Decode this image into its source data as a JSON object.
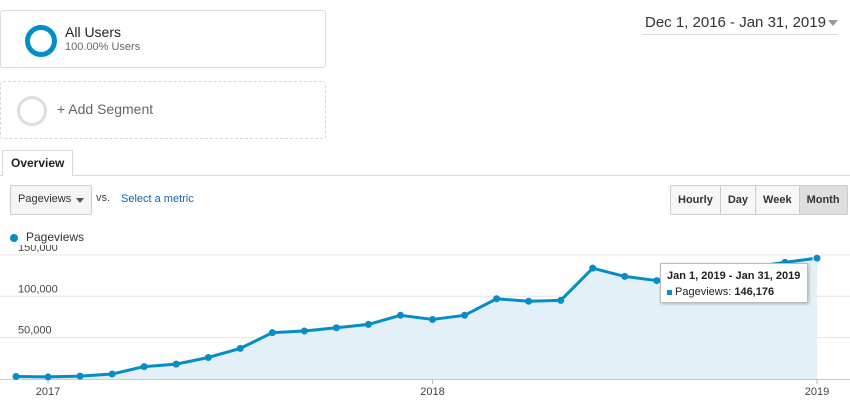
{
  "segment": {
    "name": "All Users",
    "percent": "100.00% Users"
  },
  "add_segment_label": "+ Add Segment",
  "date_range": "Dec 1, 2016 - Jan 31, 2019",
  "tabs": [
    {
      "label": "Overview"
    }
  ],
  "metric": {
    "selected": "Pageviews",
    "vs_label": "vs.",
    "select_metric_label": "Select a metric"
  },
  "granularity": [
    {
      "label": "Hourly",
      "active": false
    },
    {
      "label": "Day",
      "active": false
    },
    {
      "label": "Week",
      "active": false
    },
    {
      "label": "Month",
      "active": true
    }
  ],
  "legend": {
    "label": "Pageviews"
  },
  "colors": {
    "accent": "#058dc7",
    "fill": "#e4f0f7",
    "grid": "#e6e6e6"
  },
  "tooltip": {
    "title": "Jan 1, 2019 - Jan 31, 2019",
    "metric_label": "Pageviews:",
    "metric_value": "146,176"
  },
  "chart_data": {
    "type": "area",
    "series": [
      {
        "name": "Pageviews",
        "x": [
          "Dec 2016",
          "Jan 2017",
          "Feb 2017",
          "Mar 2017",
          "Apr 2017",
          "May 2017",
          "Jun 2017",
          "Jul 2017",
          "Aug 2017",
          "Sep 2017",
          "Oct 2017",
          "Nov 2017",
          "Dec 2017",
          "Jan 2018",
          "Feb 2018",
          "Mar 2018",
          "Apr 2018",
          "May 2018",
          "Jun 2018",
          "Jul 2018",
          "Aug 2018",
          "Sep 2018",
          "Oct 2018",
          "Nov 2018",
          "Dec 2018",
          "Jan 2019"
        ],
        "values": [
          3000,
          2500,
          3500,
          6000,
          15000,
          18000,
          26000,
          37000,
          56000,
          58000,
          62000,
          66000,
          77000,
          72000,
          77000,
          97000,
          94000,
          95000,
          134000,
          124000,
          119000,
          null,
          null,
          null,
          141000,
          146176
        ]
      }
    ],
    "y_ticks": [
      "50,000",
      "100,000",
      "150,000"
    ],
    "x_ticks": [
      "2017",
      "2018",
      "2019"
    ],
    "ylim": [
      0,
      162000
    ],
    "grid": true,
    "legend_position": "top-left"
  }
}
